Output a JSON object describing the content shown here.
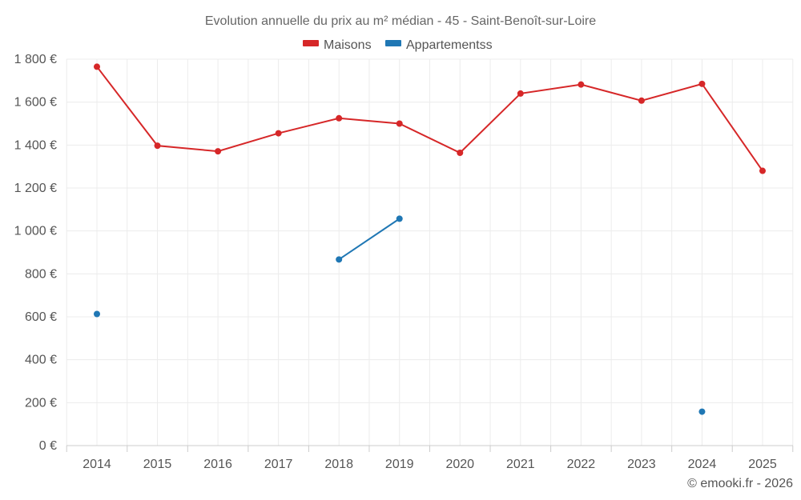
{
  "chart_data": {
    "type": "line",
    "title": "Evolution annuelle du prix au m² médian - 45 - Saint-Benoît-sur-Loire",
    "categories": [
      "2014",
      "2015",
      "2016",
      "2017",
      "2018",
      "2019",
      "2020",
      "2021",
      "2022",
      "2023",
      "2024",
      "2025"
    ],
    "series": [
      {
        "name": "Maisons",
        "color": "#d62728",
        "values": [
          1765,
          1397,
          1371,
          1455,
          1525,
          1500,
          1364,
          1640,
          1682,
          1607,
          1685,
          1280
        ]
      },
      {
        "name": "Appartementss",
        "color": "#1f77b4",
        "values": [
          613,
          null,
          null,
          null,
          867,
          1057,
          null,
          null,
          null,
          null,
          158,
          null
        ]
      }
    ],
    "ylim": [
      0,
      1800
    ],
    "yticks": [
      0,
      200,
      400,
      600,
      800,
      1000,
      1200,
      1400,
      1600,
      1800
    ],
    "ytick_labels": [
      "0 €",
      "200 €",
      "400 €",
      "600 €",
      "800 €",
      "1 000 €",
      "1 200 €",
      "1 400 €",
      "1 600 €",
      "1 800 €"
    ],
    "xlabel": "",
    "ylabel": "",
    "grid": true,
    "legend_position": "top-center"
  },
  "credit": "© emooki.fr - 2026"
}
